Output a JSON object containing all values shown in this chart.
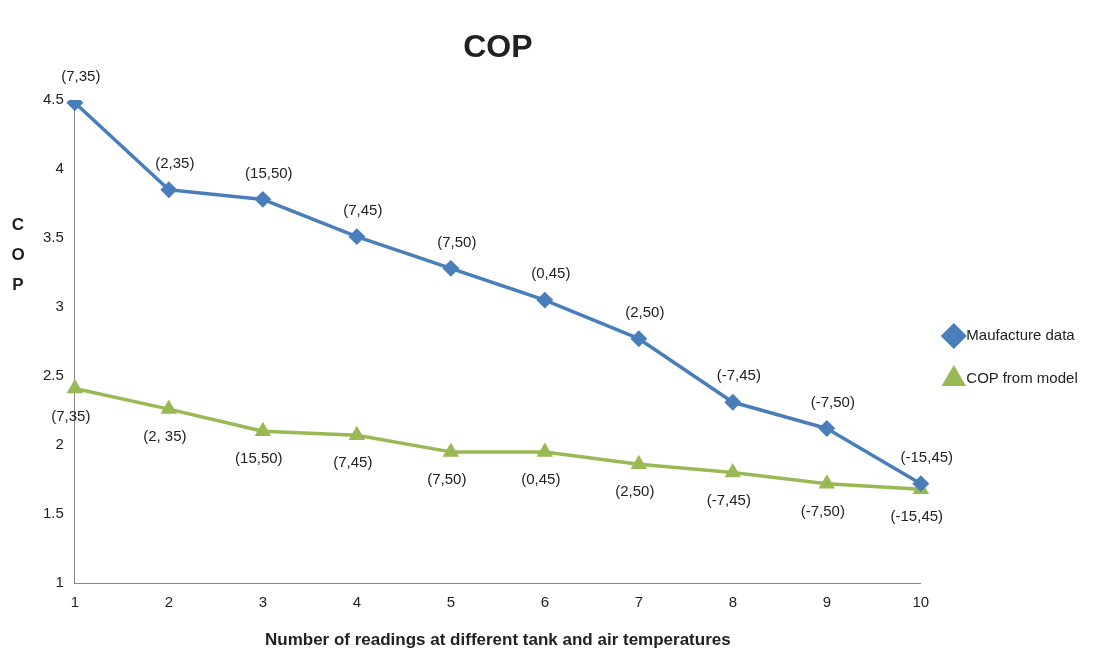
{
  "chart_data": {
    "type": "line",
    "title": "COP",
    "xlabel": "Number of readings at different tank and air temperatures",
    "ylabel": "COP",
    "categories": [
      "1",
      "2",
      "3",
      "4",
      "5",
      "6",
      "7",
      "8",
      "9",
      "10"
    ],
    "series": [
      {
        "name": "Maufacture data",
        "color": "#4a7ebb",
        "marker": "diamond",
        "values": [
          4.48,
          3.85,
          3.78,
          3.51,
          3.28,
          3.05,
          2.77,
          2.31,
          2.12,
          1.72
        ]
      },
      {
        "name": "COP from model",
        "color": "#98b954",
        "marker": "triangle",
        "values": [
          2.41,
          2.26,
          2.1,
          2.07,
          1.95,
          1.95,
          1.86,
          1.8,
          1.72,
          1.68
        ]
      }
    ],
    "ylim": [
      1,
      4.5
    ],
    "yticks": [
      1,
      1.5,
      2,
      2.5,
      3,
      3.5,
      4,
      4.5
    ],
    "grid": false,
    "legend": "right",
    "line_style": "solid",
    "annotations": [
      {
        "text": "(7,35)",
        "x": "1",
        "y": 4.48
      },
      {
        "text": "(2,35)",
        "x": "2",
        "y": 3.85
      },
      {
        "text": "(15,50)",
        "x": "3",
        "y": 3.78
      },
      {
        "text": "(7,45)",
        "x": "4",
        "y": 3.51
      },
      {
        "text": "(7,50)",
        "x": "5",
        "y": 3.28
      },
      {
        "text": "(0,45)",
        "x": "6",
        "y": 3.05
      },
      {
        "text": "(2,50)",
        "x": "7",
        "y": 2.77
      },
      {
        "text": "(-7,45)",
        "x": "8",
        "y": 2.31
      },
      {
        "text": "(-7,50)",
        "x": "9",
        "y": 2.12
      },
      {
        "text": "(-15,45)",
        "x": "10",
        "y": 1.72
      },
      {
        "text": "(7,35)",
        "x": "1",
        "y": 2.41
      },
      {
        "text": "(2, 35)",
        "x": "2",
        "y": 2.26
      },
      {
        "text": "(15,50)",
        "x": "3",
        "y": 2.1
      },
      {
        "text": "(7,45)",
        "x": "4",
        "y": 2.07
      },
      {
        "text": "(7,50)",
        "x": "5",
        "y": 1.95
      },
      {
        "text": "(0,45)",
        "x": "6",
        "y": 1.95
      },
      {
        "text": "(2,50)",
        "x": "7",
        "y": 1.86
      },
      {
        "text": "(-7,45)",
        "x": "8",
        "y": 1.8
      },
      {
        "text": "(-7,50)",
        "x": "9",
        "y": 1.72
      },
      {
        "text": "(-15,45)",
        "x": "10",
        "y": 1.68
      }
    ]
  }
}
